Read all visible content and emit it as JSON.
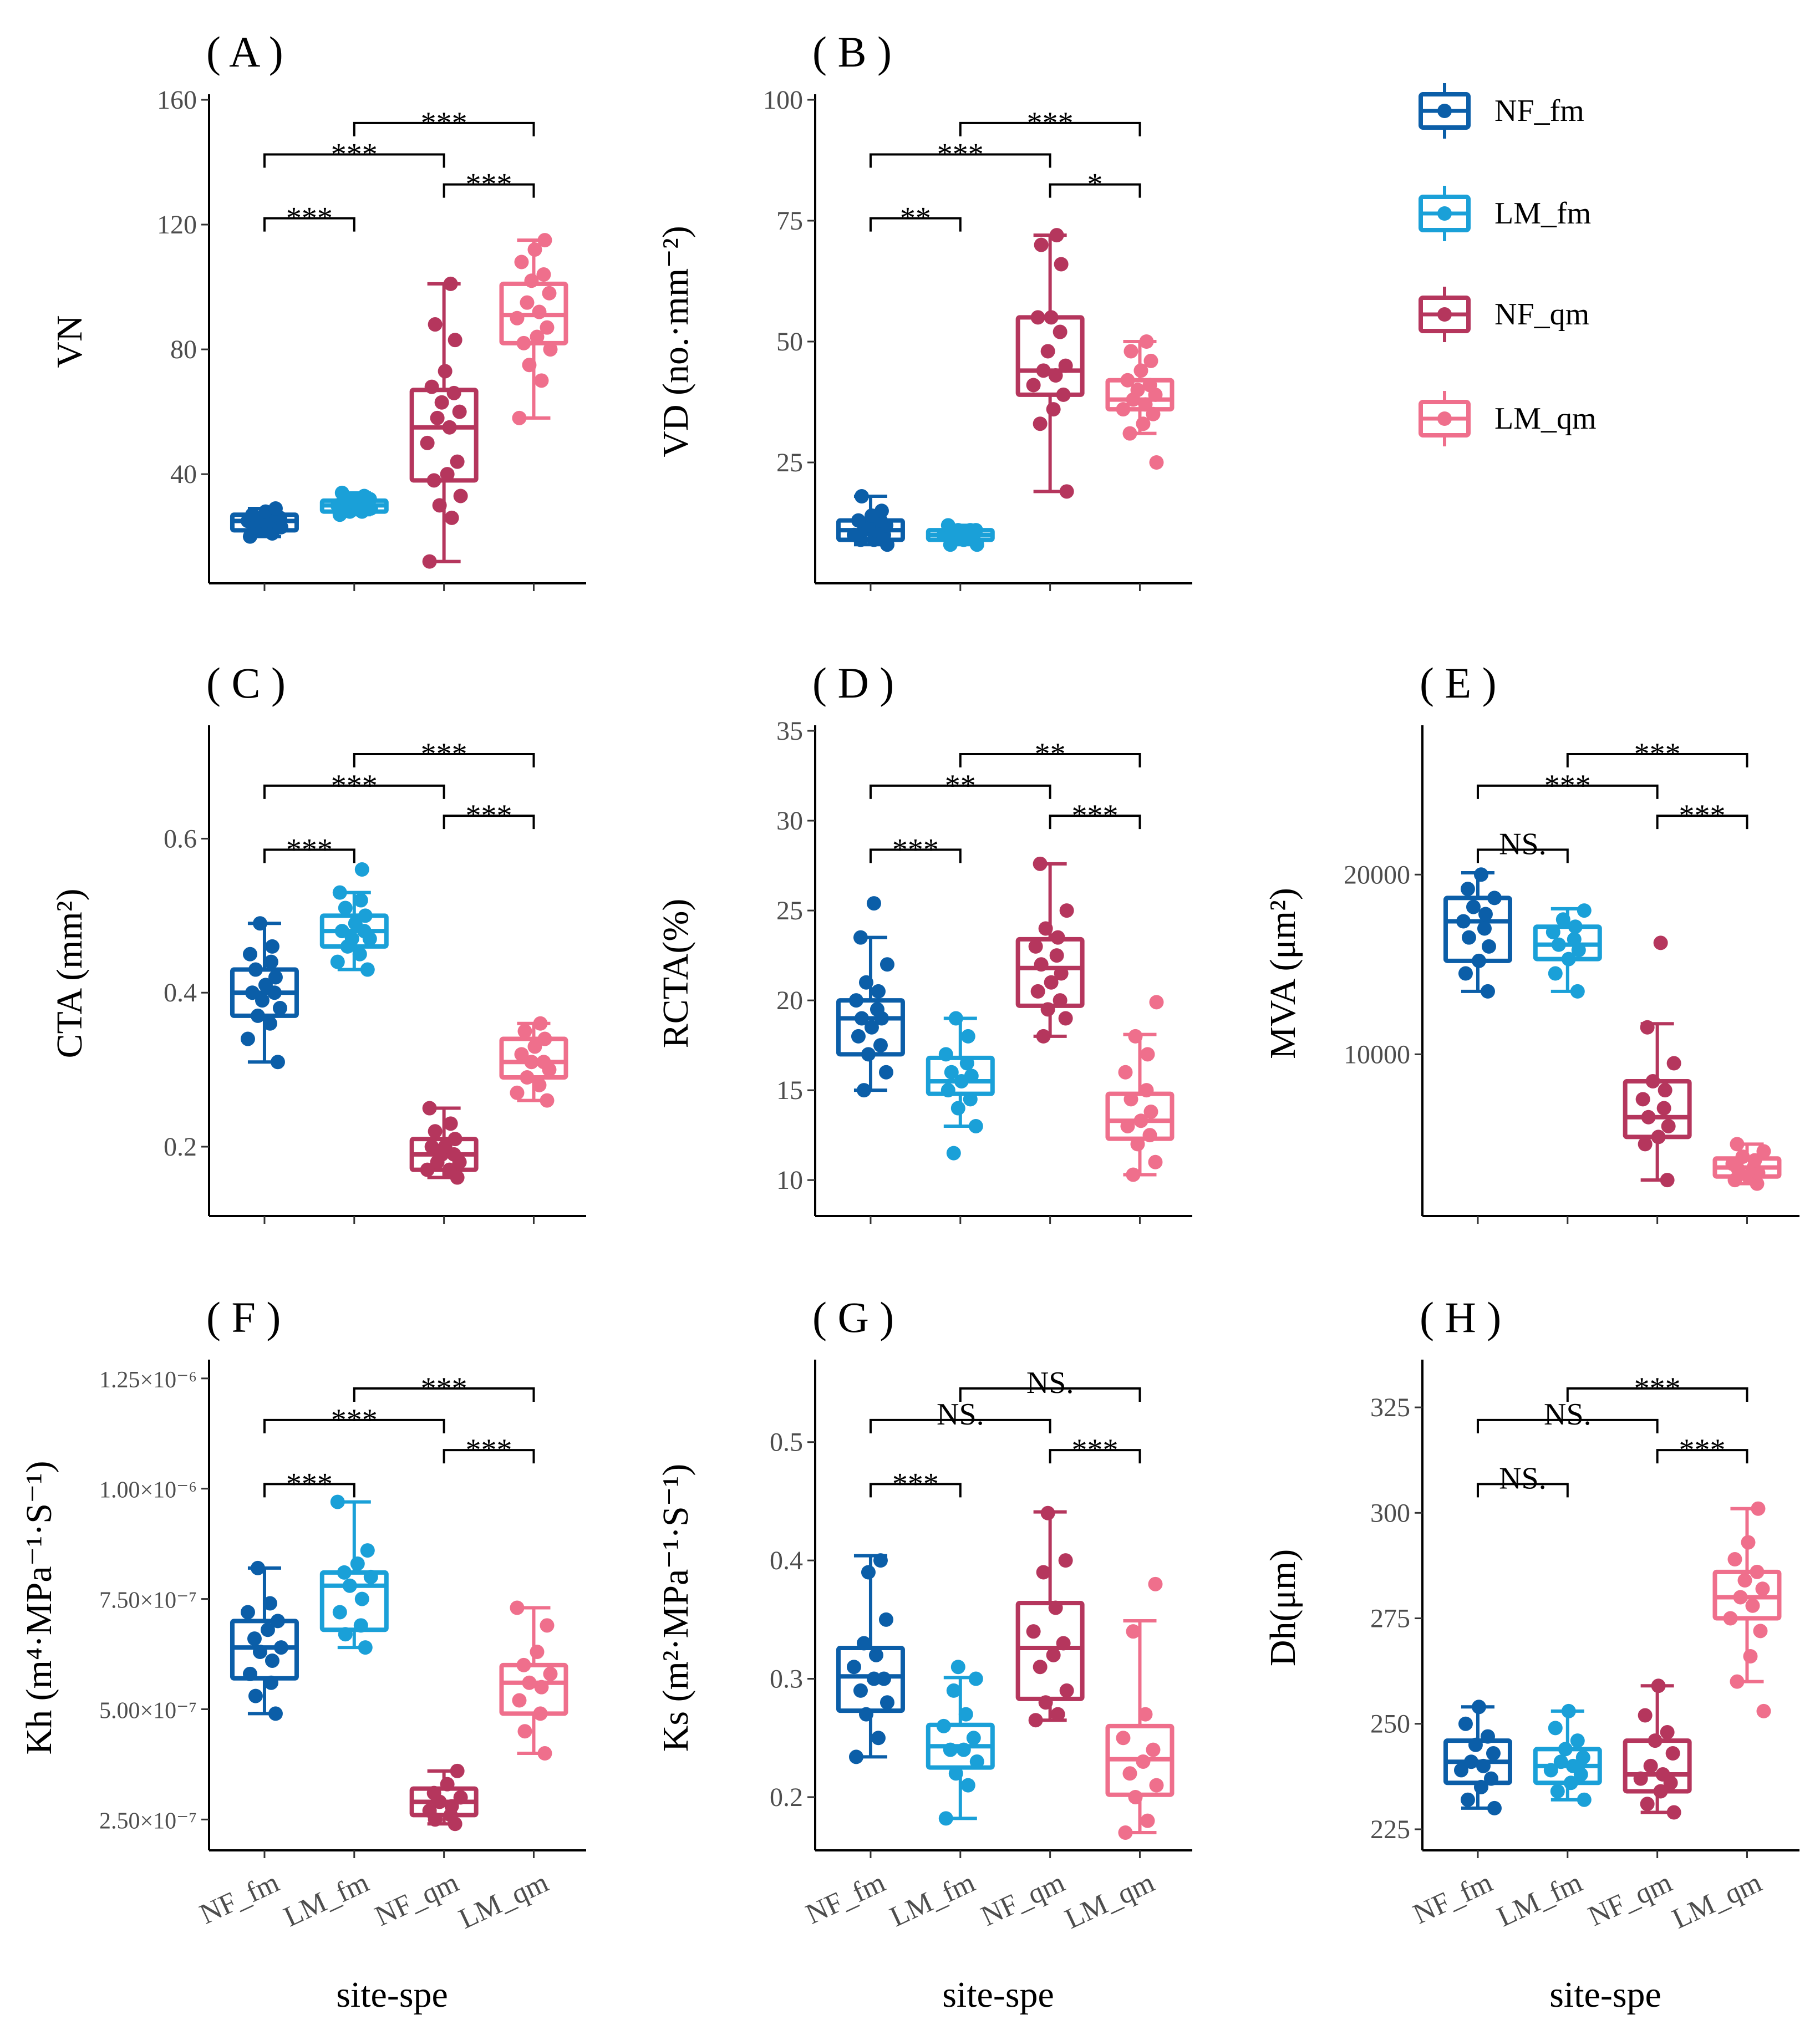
{
  "chart_data": {
    "type": "box",
    "groups": [
      "NF_fm",
      "LM_fm",
      "NF_qm",
      "LM_qm"
    ],
    "colors": [
      "#0b5ea8",
      "#1aa0d8",
      "#b5365d",
      "#ef6f8c"
    ],
    "legend": {
      "position": "top-right",
      "entries": [
        "NF_fm",
        "LM_fm",
        "NF_qm",
        "LM_qm"
      ]
    },
    "xlabel": "site-spe",
    "panels": [
      {
        "id": "A",
        "label": "( A )",
        "ylabel": "VN",
        "ylim": [
          5,
          160
        ],
        "yticks": [
          40,
          80,
          120,
          160
        ],
        "ytick_labels": [
          "40",
          "80",
          "120",
          "160"
        ],
        "boxes": [
          {
            "min": 20,
            "q1": 22,
            "median": 25,
            "q3": 27,
            "max": 29
          },
          {
            "min": 27,
            "q1": 28,
            "median": 30,
            "q3": 31.5,
            "max": 34
          },
          {
            "min": 12,
            "q1": 38,
            "median": 55,
            "q3": 67,
            "max": 101
          },
          {
            "min": 58,
            "q1": 82,
            "median": 91,
            "q3": 101,
            "max": 115
          }
        ],
        "points": [
          [
            20,
            21,
            22,
            23,
            23,
            24,
            24,
            25,
            25,
            25,
            26,
            26,
            27,
            27,
            28,
            29
          ],
          [
            27,
            28,
            28,
            29,
            29,
            30,
            30,
            30,
            31,
            31,
            32,
            32,
            33,
            34
          ],
          [
            12,
            26,
            30,
            33,
            38,
            40,
            44,
            50,
            55,
            58,
            60,
            63,
            66,
            68,
            73,
            83,
            88,
            101
          ],
          [
            58,
            70,
            75,
            80,
            82,
            84,
            87,
            90,
            92,
            95,
            98,
            102,
            104,
            108,
            112,
            115
          ]
        ],
        "comparisons": [
          {
            "from": 0,
            "to": 1,
            "label": "***"
          },
          {
            "from": 2,
            "to": 3,
            "label": "***"
          },
          {
            "from": 0,
            "to": 2,
            "label": "***"
          },
          {
            "from": 1,
            "to": 3,
            "label": "***"
          }
        ]
      },
      {
        "id": "B",
        "label": "( B )",
        "ylabel": "VD (no.·mm⁻²)",
        "ylim": [
          0,
          100
        ],
        "yticks": [
          25,
          50,
          75,
          100
        ],
        "ytick_labels": [
          "25",
          "50",
          "75",
          "100"
        ],
        "boxes": [
          {
            "min": 8,
            "q1": 9,
            "median": 11,
            "q3": 13,
            "max": 18
          },
          {
            "min": 8,
            "q1": 9,
            "median": 10,
            "q3": 11,
            "max": 12
          },
          {
            "min": 19,
            "q1": 39,
            "median": 44,
            "q3": 55,
            "max": 72
          },
          {
            "min": 31,
            "q1": 36,
            "median": 38,
            "q3": 42,
            "max": 50
          }
        ],
        "points": [
          [
            8,
            9,
            9,
            10,
            10,
            11,
            11,
            12,
            12,
            13,
            13,
            14,
            15,
            18
          ],
          [
            8,
            8,
            9,
            9,
            10,
            10,
            10,
            11,
            11,
            11,
            12
          ],
          [
            19,
            33,
            36,
            39,
            41,
            43,
            44,
            45,
            48,
            52,
            55,
            55,
            66,
            70,
            72
          ],
          [
            25,
            31,
            33,
            35,
            36,
            37,
            38,
            39,
            40,
            41,
            42,
            44,
            46,
            48,
            50
          ]
        ],
        "comparisons": [
          {
            "from": 0,
            "to": 1,
            "label": "**"
          },
          {
            "from": 2,
            "to": 3,
            "label": "*"
          },
          {
            "from": 0,
            "to": 2,
            "label": "***"
          },
          {
            "from": 1,
            "to": 3,
            "label": "***"
          }
        ]
      },
      {
        "id": "C",
        "label": "( C )",
        "ylabel": "CTA (mm²)",
        "ylim": [
          0.11,
          0.74
        ],
        "yticks": [
          0.2,
          0.4,
          0.6
        ],
        "ytick_labels": [
          "0.2",
          "0.4",
          "0.6"
        ],
        "boxes": [
          {
            "min": 0.31,
            "q1": 0.37,
            "median": 0.4,
            "q3": 0.43,
            "max": 0.49
          },
          {
            "min": 0.43,
            "q1": 0.46,
            "median": 0.48,
            "q3": 0.5,
            "max": 0.53
          },
          {
            "min": 0.16,
            "q1": 0.17,
            "median": 0.19,
            "q3": 0.21,
            "max": 0.25
          },
          {
            "min": 0.26,
            "q1": 0.29,
            "median": 0.31,
            "q3": 0.34,
            "max": 0.36
          }
        ],
        "points": [
          [
            0.31,
            0.34,
            0.36,
            0.37,
            0.38,
            0.39,
            0.4,
            0.4,
            0.41,
            0.42,
            0.43,
            0.44,
            0.45,
            0.46,
            0.49
          ],
          [
            0.43,
            0.44,
            0.45,
            0.46,
            0.47,
            0.47,
            0.48,
            0.48,
            0.49,
            0.5,
            0.51,
            0.52,
            0.53,
            0.56
          ],
          [
            0.16,
            0.17,
            0.17,
            0.18,
            0.18,
            0.19,
            0.19,
            0.2,
            0.2,
            0.21,
            0.22,
            0.23,
            0.25
          ],
          [
            0.26,
            0.27,
            0.28,
            0.29,
            0.3,
            0.31,
            0.31,
            0.32,
            0.33,
            0.34,
            0.35,
            0.36
          ]
        ],
        "comparisons": [
          {
            "from": 0,
            "to": 1,
            "label": "***"
          },
          {
            "from": 2,
            "to": 3,
            "label": "***"
          },
          {
            "from": 0,
            "to": 2,
            "label": "***"
          },
          {
            "from": 1,
            "to": 3,
            "label": "***"
          }
        ]
      },
      {
        "id": "D",
        "label": "( D )",
        "ylabel": "RCTA(%)",
        "ylim": [
          8,
          35
        ],
        "yticks": [
          10,
          15,
          20,
          25,
          30,
          35
        ],
        "ytick_labels": [
          "10",
          "15",
          "20",
          "25",
          "30",
          "35"
        ],
        "boxes": [
          {
            "min": 15,
            "q1": 17,
            "median": 19,
            "q3": 20,
            "max": 23.5
          },
          {
            "min": 13,
            "q1": 14.8,
            "median": 15.5,
            "q3": 16.8,
            "max": 19
          },
          {
            "min": 18,
            "q1": 19.7,
            "median": 21.8,
            "q3": 23.4,
            "max": 27.6
          },
          {
            "min": 10.3,
            "q1": 12.3,
            "median": 13.3,
            "q3": 14.8,
            "max": 18.1
          }
        ],
        "points": [
          [
            15,
            16,
            17,
            17.5,
            18,
            18.5,
            19,
            19,
            19.5,
            20,
            20.5,
            21,
            22,
            23.5,
            25.4
          ],
          [
            11.5,
            13,
            14,
            14.5,
            15,
            15.5,
            15.8,
            16,
            16.5,
            17,
            18,
            19
          ],
          [
            18,
            19,
            19.5,
            20,
            20.5,
            21,
            21.5,
            22,
            22.5,
            23,
            23.5,
            24,
            25,
            27.6
          ],
          [
            10.3,
            11,
            12,
            12.5,
            13,
            13.3,
            13.8,
            14.5,
            15,
            16,
            17,
            18,
            19.9
          ]
        ],
        "comparisons": [
          {
            "from": 0,
            "to": 1,
            "label": "***"
          },
          {
            "from": 2,
            "to": 3,
            "label": "***"
          },
          {
            "from": 0,
            "to": 2,
            "label": "**"
          },
          {
            "from": 1,
            "to": 3,
            "label": "**"
          }
        ]
      },
      {
        "id": "E",
        "label": "( E )",
        "ylabel": "MVA (μm²)",
        "ylim": [
          1000,
          28000
        ],
        "yticks": [
          10000,
          20000
        ],
        "ytick_labels": [
          "10000",
          "20000"
        ],
        "boxes": [
          {
            "min": 13500,
            "q1": 15200,
            "median": 17400,
            "q3": 18700,
            "max": 20100
          },
          {
            "min": 13500,
            "q1": 15300,
            "median": 16100,
            "q3": 17100,
            "max": 18100
          },
          {
            "min": 3000,
            "q1": 5400,
            "median": 6500,
            "q3": 8500,
            "max": 11700
          },
          {
            "min": 2800,
            "q1": 3200,
            "median": 3700,
            "q3": 4200,
            "max": 5000
          }
        ],
        "points": [
          [
            13500,
            14500,
            15200,
            16000,
            16500,
            17000,
            17400,
            17800,
            18200,
            18700,
            19200,
            20000
          ],
          [
            13500,
            14500,
            15300,
            15800,
            16100,
            16400,
            16800,
            17100,
            17500,
            18000
          ],
          [
            3000,
            5000,
            5400,
            6000,
            6500,
            7000,
            7500,
            8000,
            8500,
            9500,
            11500,
            16200
          ],
          [
            2800,
            3000,
            3200,
            3400,
            3600,
            3700,
            3900,
            4100,
            4300,
            4600,
            5000
          ]
        ],
        "comparisons": [
          {
            "from": 0,
            "to": 1,
            "label": "NS."
          },
          {
            "from": 2,
            "to": 3,
            "label": "***"
          },
          {
            "from": 0,
            "to": 2,
            "label": "***"
          },
          {
            "from": 1,
            "to": 3,
            "label": "***"
          }
        ]
      },
      {
        "id": "F",
        "label": "( F )",
        "ylabel": "Kh (m⁴·MPa⁻¹·S⁻¹)",
        "ylim": [
          1.8e-07,
          1.28e-06
        ],
        "yticks": [
          2.5e-07,
          5e-07,
          7.5e-07,
          1e-06,
          1.25e-06
        ],
        "ytick_labels": [
          "2.50×10⁻⁷",
          "5.00×10⁻⁷",
          "7.50×10⁻⁷",
          "1.00×10⁻⁶",
          "1.25×10⁻⁶"
        ],
        "boxes": [
          {
            "min": 4.9e-07,
            "q1": 5.7e-07,
            "median": 6.4e-07,
            "q3": 7e-07,
            "max": 8.2e-07
          },
          {
            "min": 6.4e-07,
            "q1": 6.8e-07,
            "median": 7.8e-07,
            "q3": 8.1e-07,
            "max": 9.7e-07
          },
          {
            "min": 2.4e-07,
            "q1": 2.6e-07,
            "median": 2.9e-07,
            "q3": 3.2e-07,
            "max": 3.6e-07
          },
          {
            "min": 4e-07,
            "q1": 4.9e-07,
            "median": 5.6e-07,
            "q3": 6e-07,
            "max": 7.3e-07
          }
        ],
        "points": [
          [
            4.9e-07,
            5.3e-07,
            5.6e-07,
            5.8e-07,
            6.1e-07,
            6.3e-07,
            6.4e-07,
            6.6e-07,
            6.8e-07,
            7e-07,
            7.2e-07,
            7.4e-07,
            8.2e-07
          ],
          [
            6.4e-07,
            6.7e-07,
            6.9e-07,
            7.2e-07,
            7.5e-07,
            7.8e-07,
            8e-07,
            8.1e-07,
            8.3e-07,
            8.6e-07,
            9.7e-07
          ],
          [
            2.4e-07,
            2.5e-07,
            2.6e-07,
            2.7e-07,
            2.8e-07,
            2.9e-07,
            3e-07,
            3.1e-07,
            3.3e-07,
            3.6e-07
          ],
          [
            4e-07,
            4.5e-07,
            4.9e-07,
            5.2e-07,
            5.5e-07,
            5.6e-07,
            5.8e-07,
            6e-07,
            6.3e-07,
            6.9e-07,
            7.3e-07
          ]
        ],
        "comparisons": [
          {
            "from": 0,
            "to": 1,
            "label": "***"
          },
          {
            "from": 2,
            "to": 3,
            "label": "***"
          },
          {
            "from": 0,
            "to": 2,
            "label": "***"
          },
          {
            "from": 1,
            "to": 3,
            "label": "***"
          }
        ]
      },
      {
        "id": "G",
        "label": "( G )",
        "ylabel": "Ks (m²·MPa⁻¹·S⁻¹)",
        "ylim": [
          0.155,
          0.565
        ],
        "yticks": [
          0.2,
          0.3,
          0.4,
          0.5
        ],
        "ytick_labels": [
          "0.2",
          "0.3",
          "0.4",
          "0.5"
        ],
        "boxes": [
          {
            "min": 0.234,
            "q1": 0.273,
            "median": 0.302,
            "q3": 0.326,
            "max": 0.404
          },
          {
            "min": 0.182,
            "q1": 0.225,
            "median": 0.243,
            "q3": 0.261,
            "max": 0.301
          },
          {
            "min": 0.265,
            "q1": 0.283,
            "median": 0.326,
            "q3": 0.364,
            "max": 0.441
          },
          {
            "min": 0.17,
            "q1": 0.202,
            "median": 0.232,
            "q3": 0.26,
            "max": 0.349
          }
        ],
        "points": [
          [
            0.234,
            0.25,
            0.27,
            0.28,
            0.29,
            0.3,
            0.3,
            0.31,
            0.32,
            0.33,
            0.35,
            0.39,
            0.4
          ],
          [
            0.182,
            0.21,
            0.22,
            0.23,
            0.24,
            0.24,
            0.25,
            0.26,
            0.27,
            0.29,
            0.3,
            0.31
          ],
          [
            0.265,
            0.27,
            0.28,
            0.29,
            0.31,
            0.32,
            0.33,
            0.34,
            0.36,
            0.39,
            0.4,
            0.44
          ],
          [
            0.17,
            0.18,
            0.2,
            0.21,
            0.22,
            0.23,
            0.24,
            0.25,
            0.27,
            0.34,
            0.38
          ]
        ],
        "comparisons": [
          {
            "from": 0,
            "to": 1,
            "label": "***"
          },
          {
            "from": 2,
            "to": 3,
            "label": "***"
          },
          {
            "from": 0,
            "to": 2,
            "label": "NS."
          },
          {
            "from": 1,
            "to": 3,
            "label": "NS."
          }
        ]
      },
      {
        "id": "H",
        "label": "( H )",
        "ylabel": "Dh(μm)",
        "ylim": [
          220,
          335
        ],
        "yticks": [
          225,
          250,
          275,
          300,
          325
        ],
        "ytick_labels": [
          "225",
          "250",
          "275",
          "300",
          "325"
        ],
        "boxes": [
          {
            "min": 230,
            "q1": 236,
            "median": 241,
            "q3": 246,
            "max": 254
          },
          {
            "min": 232,
            "q1": 236,
            "median": 240,
            "q3": 244,
            "max": 253
          },
          {
            "min": 229,
            "q1": 234,
            "median": 238,
            "q3": 246,
            "max": 259
          },
          {
            "min": 260,
            "q1": 275,
            "median": 280,
            "q3": 286,
            "max": 301
          }
        ],
        "points": [
          [
            230,
            232,
            235,
            237,
            239,
            240,
            241,
            243,
            245,
            247,
            250,
            254
          ],
          [
            232,
            234,
            236,
            238,
            239,
            240,
            241,
            242,
            244,
            246,
            249,
            253
          ],
          [
            229,
            231,
            234,
            236,
            237,
            238,
            240,
            243,
            246,
            248,
            252,
            259
          ],
          [
            253,
            260,
            266,
            272,
            275,
            278,
            280,
            282,
            284,
            286,
            289,
            293,
            301
          ]
        ],
        "comparisons": [
          {
            "from": 0,
            "to": 1,
            "label": "NS."
          },
          {
            "from": 2,
            "to": 3,
            "label": "***"
          },
          {
            "from": 0,
            "to": 2,
            "label": "NS."
          },
          {
            "from": 1,
            "to": 3,
            "label": "***"
          }
        ]
      }
    ]
  }
}
